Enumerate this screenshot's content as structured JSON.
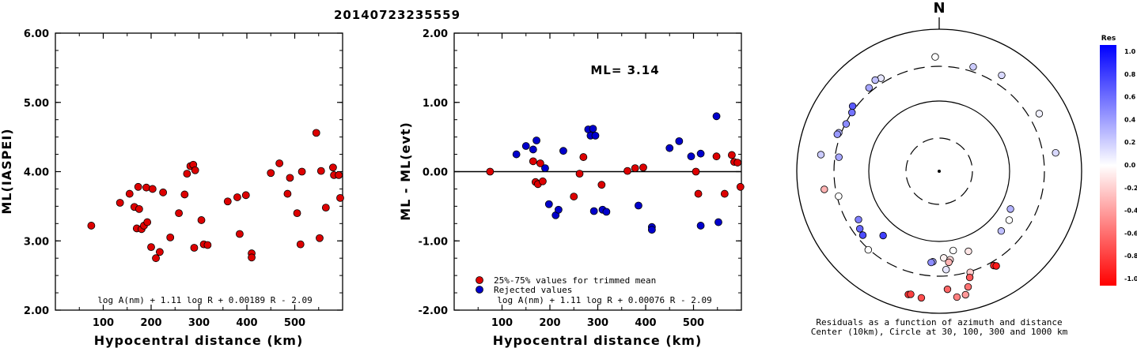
{
  "event_id": "20140723235559",
  "colors": {
    "accepted": "#dd0000",
    "rejected": "#0000cc"
  },
  "chart_data": [
    {
      "type": "scatter",
      "xlabel": "Hypocentral distance (km)",
      "ylabel": "ML(IASPEI)",
      "xlim": [
        0,
        600
      ],
      "ylim": [
        2.0,
        6.0
      ],
      "xticks": [
        "100",
        "200",
        "300",
        "400",
        "500"
      ],
      "yticks": [
        "2.00",
        "3.00",
        "4.00",
        "5.00",
        "6.00"
      ],
      "formula": "log A(nm) + 1.11 log R + 0.00189 R - 2.09",
      "points": [
        [
          75,
          3.22
        ],
        [
          135,
          3.55
        ],
        [
          155,
          3.68
        ],
        [
          165,
          3.49
        ],
        [
          170,
          3.18
        ],
        [
          173,
          3.78
        ],
        [
          175,
          3.46
        ],
        [
          180,
          3.17
        ],
        [
          185,
          3.22
        ],
        [
          190,
          3.77
        ],
        [
          192,
          3.27
        ],
        [
          200,
          2.91
        ],
        [
          203,
          3.75
        ],
        [
          210,
          2.75
        ],
        [
          218,
          2.84
        ],
        [
          225,
          3.7
        ],
        [
          240,
          3.05
        ],
        [
          258,
          3.4
        ],
        [
          270,
          3.67
        ],
        [
          275,
          3.97
        ],
        [
          282,
          4.08
        ],
        [
          288,
          4.1
        ],
        [
          290,
          2.9
        ],
        [
          292,
          4.02
        ],
        [
          305,
          3.3
        ],
        [
          310,
          2.95
        ],
        [
          318,
          2.94
        ],
        [
          360,
          3.57
        ],
        [
          380,
          3.63
        ],
        [
          385,
          3.1
        ],
        [
          398,
          3.66
        ],
        [
          410,
          2.82
        ],
        [
          410,
          2.76
        ],
        [
          450,
          3.98
        ],
        [
          468,
          4.12
        ],
        [
          485,
          3.68
        ],
        [
          490,
          3.91
        ],
        [
          505,
          3.4
        ],
        [
          515,
          4.0
        ],
        [
          512,
          2.95
        ],
        [
          545,
          4.56
        ],
        [
          552,
          3.04
        ],
        [
          555,
          4.01
        ],
        [
          565,
          3.48
        ],
        [
          580,
          4.06
        ],
        [
          582,
          3.95
        ],
        [
          592,
          3.95
        ],
        [
          595,
          3.62
        ]
      ]
    },
    {
      "type": "scatter",
      "xlabel": "Hypocentral distance (km)",
      "ylabel": "ML - ML(evt)",
      "xlim": [
        0,
        600
      ],
      "ylim": [
        -2.0,
        2.0
      ],
      "xticks": [
        "100",
        "200",
        "300",
        "400",
        "500"
      ],
      "yticks": [
        "-2.00",
        "-1.00",
        "0.00",
        "1.00",
        "2.00"
      ],
      "annotation": "ML= 3.14",
      "legend": [
        "25%-75% values for trimmed mean",
        "Rejected values"
      ],
      "formula": "log A(nm) + 1.11 log R + 0.00076 R - 2.09",
      "accepted": [
        [
          75,
          0.0
        ],
        [
          165,
          0.15
        ],
        [
          170,
          -0.15
        ],
        [
          175,
          -0.18
        ],
        [
          180,
          0.12
        ],
        [
          185,
          -0.14
        ],
        [
          250,
          -0.36
        ],
        [
          262,
          -0.03
        ],
        [
          270,
          0.21
        ],
        [
          308,
          -0.19
        ],
        [
          362,
          0.01
        ],
        [
          378,
          0.05
        ],
        [
          395,
          0.06
        ],
        [
          505,
          0.0
        ],
        [
          510,
          -0.32
        ],
        [
          548,
          0.22
        ],
        [
          565,
          -0.32
        ],
        [
          580,
          0.24
        ],
        [
          585,
          0.14
        ],
        [
          592,
          0.13
        ],
        [
          598,
          -0.22
        ]
      ],
      "rejected": [
        [
          130,
          0.25
        ],
        [
          150,
          0.37
        ],
        [
          165,
          0.32
        ],
        [
          172,
          0.45
        ],
        [
          190,
          0.05
        ],
        [
          198,
          -0.47
        ],
        [
          212,
          -0.63
        ],
        [
          218,
          -0.55
        ],
        [
          228,
          0.3
        ],
        [
          280,
          0.61
        ],
        [
          285,
          0.52
        ],
        [
          290,
          0.62
        ],
        [
          292,
          -0.57
        ],
        [
          295,
          0.52
        ],
        [
          310,
          -0.55
        ],
        [
          318,
          -0.58
        ],
        [
          385,
          -0.49
        ],
        [
          413,
          -0.8
        ],
        [
          413,
          -0.84
        ],
        [
          450,
          0.34
        ],
        [
          470,
          0.44
        ],
        [
          495,
          0.22
        ],
        [
          515,
          0.26
        ],
        [
          515,
          -0.78
        ],
        [
          548,
          0.8
        ],
        [
          552,
          -0.73
        ]
      ]
    },
    {
      "type": "scatter",
      "subtype": "polar",
      "north_label": "N",
      "caption_line1": "Residuals as a function of azimuth and distance",
      "caption_line2": "Center (10km), Circle at 30, 100, 300 and 1000 km",
      "colorbar": {
        "title": "Res",
        "ticks": [
          "1.0",
          "0.8",
          "0.6",
          "0.4",
          "0.2",
          "0.0",
          "-0.2",
          "-0.4",
          "-0.6",
          "-0.8",
          "-1.0"
        ],
        "range": [
          -1.0,
          1.0
        ]
      },
      "points": [
        [
          -2,
          0.0
        ],
        [
          33,
          0.15
        ],
        [
          18,
          0.2
        ],
        [
          -32,
          0.1
        ],
        [
          -35,
          0.25
        ],
        [
          -40,
          0.35
        ],
        [
          -53,
          0.65
        ],
        [
          -56,
          0.55
        ],
        [
          -63,
          0.45
        ],
        [
          -69,
          0.3
        ],
        [
          -70,
          0.4
        ],
        [
          -82,
          0.2
        ],
        [
          -82,
          0.35
        ],
        [
          -99,
          -0.3
        ],
        [
          -104,
          0.0
        ],
        [
          -126,
          0.6
        ],
        [
          -130,
          0.7
        ],
        [
          -121,
          0.5
        ],
        [
          -138,
          0.0
        ],
        [
          -139,
          0.75
        ],
        [
          -166,
          -0.8
        ],
        [
          -167,
          -0.75
        ],
        [
          -172,
          -0.7
        ],
        [
          -176,
          0.35
        ],
        [
          -175,
          0.45
        ],
        [
          177,
          -0.05
        ],
        [
          173,
          -0.15
        ],
        [
          170,
          0.0
        ],
        [
          163,
          -0.2
        ],
        [
          160,
          -0.1
        ],
        [
          176,
          -0.6
        ],
        [
          172,
          -0.5
        ],
        [
          168,
          -0.4
        ],
        [
          166,
          -0.55
        ],
        [
          164,
          -0.65
        ],
        [
          150,
          -0.85
        ],
        [
          149,
          -0.9
        ],
        [
          134,
          0.25
        ],
        [
          118,
          0.3
        ],
        [
          81,
          0.15
        ],
        [
          60,
          0.05
        ],
        [
          125,
          0.0
        ],
        [
          176,
          0.1
        ],
        [
          174,
          -0.3
        ]
      ],
      "point_r": [
        145,
        145,
        139,
        139,
        141,
        138,
        137,
        133,
        132,
        136,
        137,
        151,
        128,
        147,
        131,
        124,
        126,
        119,
        134,
        108,
        161,
        160,
        162,
        115,
        116,
        110,
        113,
        102,
        134,
        108,
        150,
        161,
        160,
        151,
        140,
        138,
        140,
        109,
        102,
        149,
        146,
        108,
        125,
        116
      ]
    }
  ]
}
